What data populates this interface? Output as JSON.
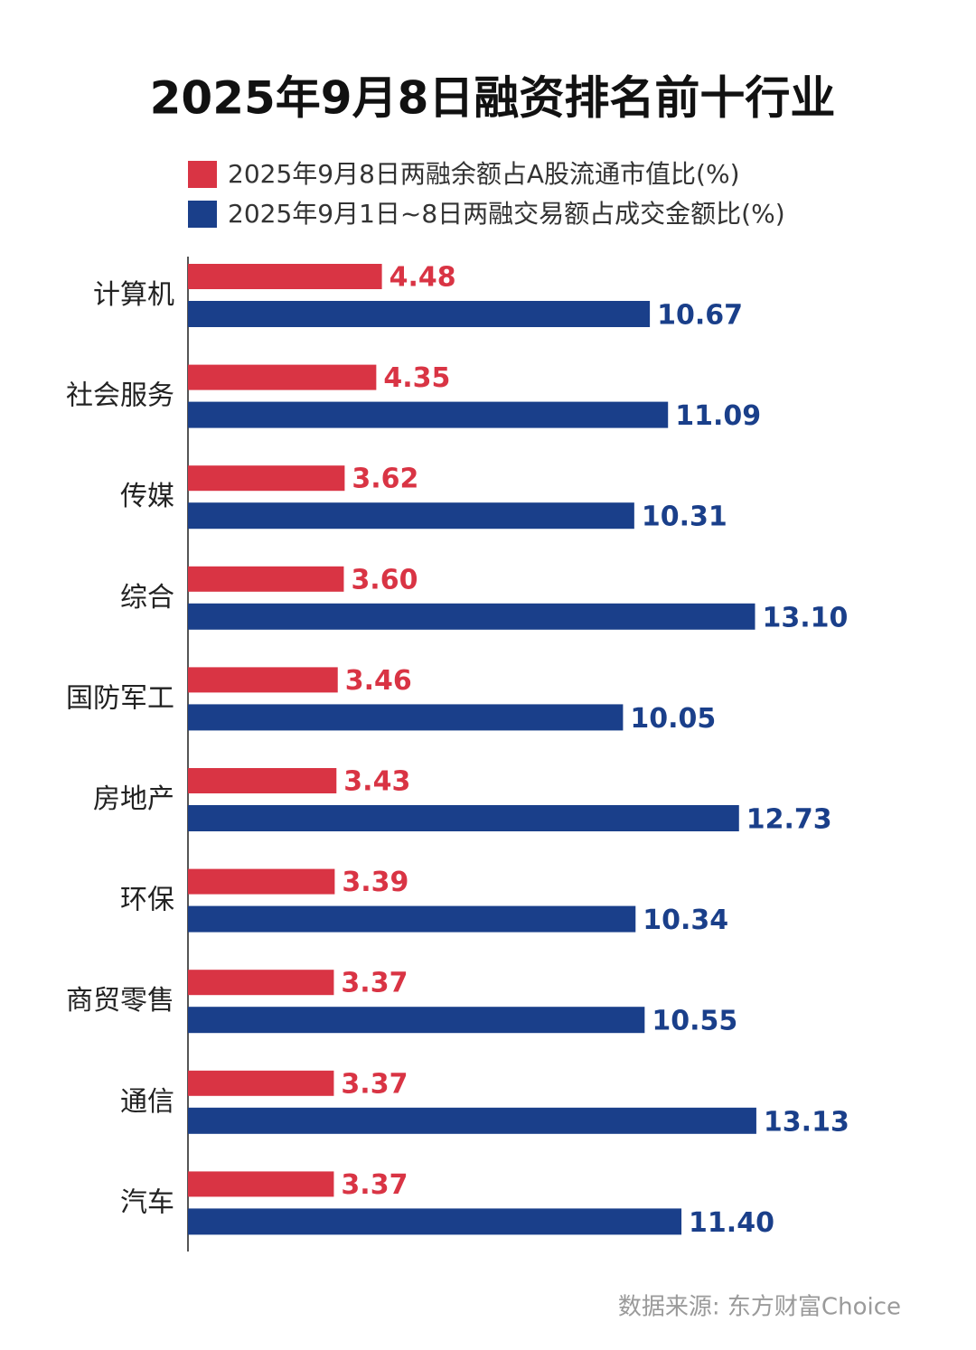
{
  "chart_data": {
    "type": "hbar",
    "title": "2025年9月8日融资排名前十行业",
    "categories": [
      "计算机",
      "社会服务",
      "传媒",
      "综合",
      "国防军工",
      "房地产",
      "环保",
      "商贸零售",
      "通信",
      "汽车"
    ],
    "series": [
      {
        "name": "2025年9月8日两融余额占A股流通市值比(%)",
        "color": "#d93444",
        "values": [
          4.48,
          4.35,
          3.62,
          3.6,
          3.46,
          3.43,
          3.39,
          3.37,
          3.37,
          3.37
        ],
        "value_labels": [
          "4.48",
          "4.35",
          "3.62",
          "3.60",
          "3.46",
          "3.43",
          "3.39",
          "3.37",
          "3.37",
          "3.37"
        ]
      },
      {
        "name": "2025年9月1日~8日两融交易额占成交金额比(%)",
        "color": "#1a3f8a",
        "values": [
          10.67,
          11.09,
          10.31,
          13.1,
          10.05,
          12.73,
          10.34,
          10.55,
          13.13,
          11.4
        ],
        "value_labels": [
          "10.67",
          "11.09",
          "10.31",
          "13.10",
          "10.05",
          "12.73",
          "10.34",
          "10.55",
          "13.13",
          "11.40"
        ]
      }
    ],
    "source": "数据来源: 东方财富Choice"
  }
}
